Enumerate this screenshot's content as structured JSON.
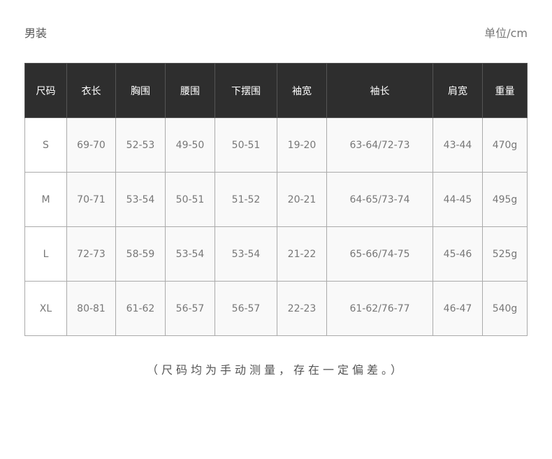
{
  "title": "男装",
  "unit": "单位/cm",
  "table": {
    "headers": [
      "尺码",
      "衣长",
      "胸围",
      "腰围",
      "下摆围",
      "袖宽",
      "袖长",
      "肩宽",
      "重量"
    ],
    "rows": [
      [
        "S",
        "69-70",
        "52-53",
        "49-50",
        "50-51",
        "19-20",
        "63-64/72-73",
        "43-44",
        "470g"
      ],
      [
        "M",
        "70-71",
        "53-54",
        "50-51",
        "51-52",
        "20-21",
        "64-65/73-74",
        "44-45",
        "495g"
      ],
      [
        "L",
        "72-73",
        "58-59",
        "53-54",
        "53-54",
        "21-22",
        "65-66/74-75",
        "45-46",
        "525g"
      ],
      [
        "XL",
        "80-81",
        "61-62",
        "56-57",
        "56-57",
        "22-23",
        "61-62/76-77",
        "46-47",
        "540g"
      ]
    ]
  },
  "note": "（尺码均为手动测量，存在一定偏差。）"
}
